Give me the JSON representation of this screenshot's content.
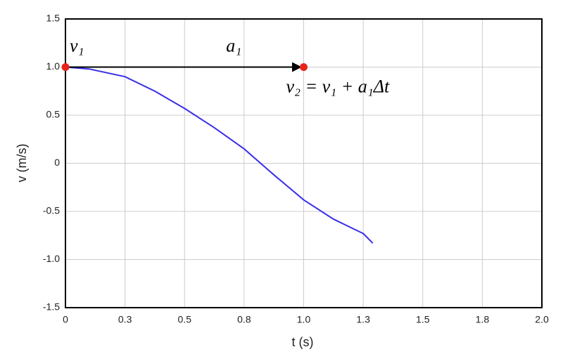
{
  "chart_data": {
    "type": "line",
    "x_label": "t (s)",
    "y_label": "v (m/s)",
    "xlim": [
      0,
      2
    ],
    "ylim": [
      -1.5,
      1.5
    ],
    "xticks": [
      0,
      {
        "value": 0.25,
        "label": "0.3"
      },
      0.5,
      {
        "value": 0.75,
        "label": "0.8"
      },
      {
        "value": 1,
        "label": "1.0"
      },
      {
        "value": 1.25,
        "label": "1.3"
      },
      1.5,
      {
        "value": 1.75,
        "label": "1.8"
      },
      {
        "value": 2,
        "label": "2.0"
      }
    ],
    "yticks": [
      1.5,
      {
        "value": 1,
        "label": "1.0"
      },
      0.5,
      0,
      -0.5,
      {
        "value": -1,
        "label": "-1.0"
      },
      -1.5
    ],
    "grid": true,
    "series": [
      {
        "color": "#3a2ee8",
        "x": [
          0,
          0.1,
          0.25,
          0.375,
          0.5,
          0.625,
          0.75,
          0.875,
          1.0,
          1.125,
          1.25,
          1.29
        ],
        "values": [
          1.0,
          0.98,
          0.9,
          0.75,
          0.57,
          0.37,
          0.15,
          -0.12,
          -0.38,
          -0.58,
          -0.73,
          -0.83
        ]
      }
    ],
    "markers": {
      "color": "#e8231a",
      "x": [
        0,
        1.0
      ],
      "values": [
        1.0,
        1.0
      ]
    },
    "annotations": [
      "v₁",
      "a₁",
      "v₂ = v₁ + a₁Δt"
    ]
  }
}
